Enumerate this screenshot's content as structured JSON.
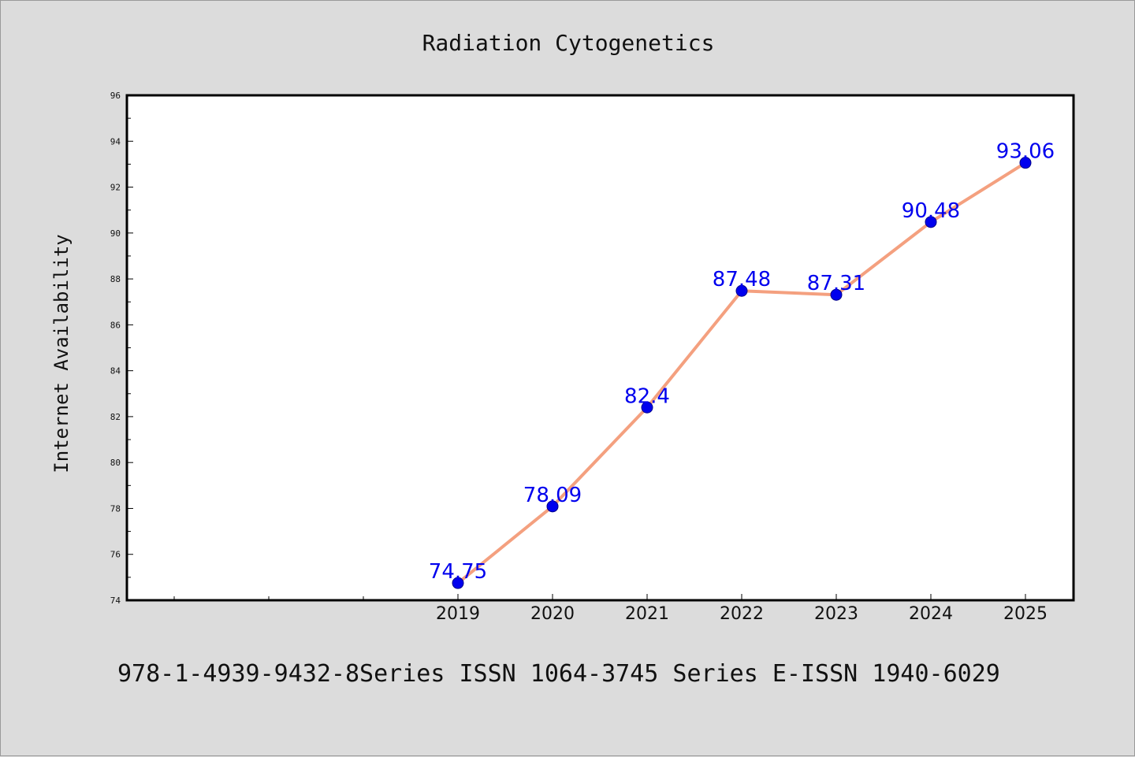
{
  "chart_data": {
    "type": "line",
    "title": "Radiation Cytogenetics",
    "xlabel": "",
    "ylabel": "Internet Availability",
    "categories": [
      "2019",
      "2020",
      "2021",
      "2022",
      "2023",
      "2024",
      "2025"
    ],
    "series": [
      {
        "values": [
          74.75,
          78.09,
          82.4,
          87.48,
          87.31,
          90.48,
          93.06
        ]
      }
    ],
    "data_labels": [
      "74.75",
      "78.09",
      "82.4",
      "87.48",
      "87.31",
      "90.48",
      "93.06"
    ],
    "ylim": [
      74,
      96
    ],
    "yticks": [
      74,
      76,
      78,
      80,
      82,
      84,
      86,
      88,
      90,
      92,
      94,
      96
    ],
    "grid": false,
    "legend": "none",
    "colors": {
      "line": "#f4a07f",
      "marker": "#0000ee",
      "label": "#0000ee",
      "background": "#dcdcdc",
      "plot_background": "#ffffff"
    }
  },
  "footer": "978-1-4939-9432-8Series ISSN 1064-3745 Series E-ISSN 1940-6029"
}
